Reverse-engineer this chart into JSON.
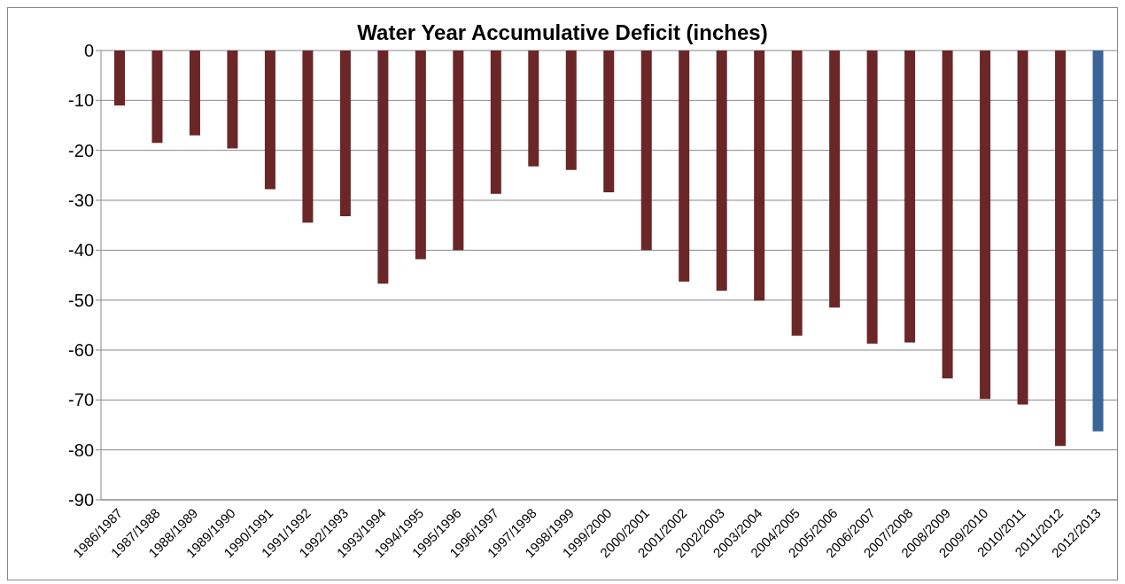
{
  "chart_data": {
    "type": "bar",
    "title": "Water Year Accumulative Deficit (inches)",
    "categories": [
      "1986/1987",
      "1987/1988",
      "1988/1989",
      "1989/1990",
      "1990/1991",
      "1991/1992",
      "1992/1993",
      "1993/1994",
      "1994/1995",
      "1995/1996",
      "1996/1997",
      "1997/1998",
      "1998/1999",
      "1999/2000",
      "2000/2001",
      "2001/2002",
      "2002/2003",
      "2003/2004",
      "2004/2005",
      "2005/2006",
      "2006/2007",
      "2007/2008",
      "2008/2009",
      "2009/2010",
      "2010/2011",
      "2011/2012",
      "2012/2013"
    ],
    "values": [
      -11,
      -18.5,
      -17,
      -19.6,
      -27.8,
      -34.5,
      -33.2,
      -46.7,
      -41.8,
      -40,
      -28.7,
      -23.2,
      -23.9,
      -28.4,
      -40,
      -46.3,
      -48.1,
      -50.1,
      -57.1,
      -51.5,
      -58.7,
      -58.5,
      -65.7,
      -69.8,
      -70.9,
      -79.2,
      -76.3
    ],
    "colors": [
      "#6b2627",
      "#6b2627",
      "#6b2627",
      "#6b2627",
      "#6b2627",
      "#6b2627",
      "#6b2627",
      "#6b2627",
      "#6b2627",
      "#6b2627",
      "#6b2627",
      "#6b2627",
      "#6b2627",
      "#6b2627",
      "#6b2627",
      "#6b2627",
      "#6b2627",
      "#6b2627",
      "#6b2627",
      "#6b2627",
      "#6b2627",
      "#6b2627",
      "#6b2627",
      "#6b2627",
      "#6b2627",
      "#6b2627",
      "#3a6496"
    ],
    "ylim": [
      -90,
      0
    ],
    "yticks": [
      0,
      -10,
      -20,
      -30,
      -40,
      -50,
      -60,
      -70,
      -80,
      -90
    ],
    "grid": "y"
  }
}
